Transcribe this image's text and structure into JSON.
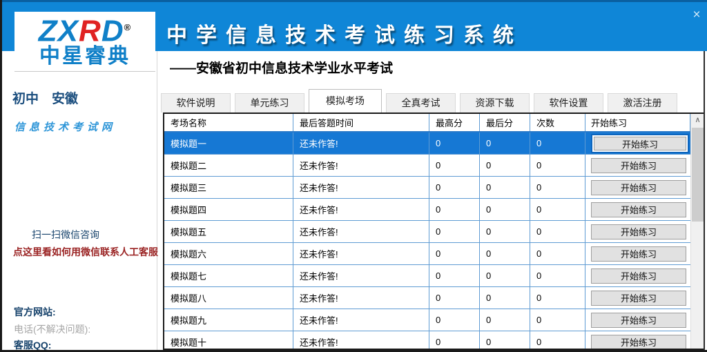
{
  "window": {
    "close_glyph": "×"
  },
  "header": {
    "logo": {
      "zx": "ZX",
      "r": "R",
      "d": "D",
      "reg": "®",
      "cn": "中星睿典"
    },
    "title": "中学信息技术考试练习系统",
    "subtitle": "——安徽省初中信息技术学业水平考试"
  },
  "sidebar": {
    "region": "初中　安徽",
    "site_name": "信息技术考试网",
    "wechat_scan": "扫一扫微信咨询",
    "wechat_help_link": "点这里看如何用微信联系人工客服",
    "official_site_label": "官方网站:",
    "phone_label": "电话(不解决问题):",
    "qq_label": "客服QQ:"
  },
  "tabs": [
    {
      "label": "软件说明",
      "active": false
    },
    {
      "label": "单元练习",
      "active": false
    },
    {
      "label": "模拟考场",
      "active": true
    },
    {
      "label": "全真考试",
      "active": false
    },
    {
      "label": "资源下载",
      "active": false
    },
    {
      "label": "软件设置",
      "active": false
    },
    {
      "label": "激活注册",
      "active": false
    }
  ],
  "table": {
    "headers": [
      "考场名称",
      "最后答题时间",
      "最高分",
      "最后分",
      "次数",
      "开始练习"
    ],
    "button_label": "开始练习",
    "rows": [
      {
        "name": "模拟题一",
        "last_time": "还未作答!",
        "best_score": "0",
        "last_score": "0",
        "count": "0",
        "selected": true
      },
      {
        "name": "模拟题二",
        "last_time": "还未作答!",
        "best_score": "0",
        "last_score": "0",
        "count": "0",
        "selected": false
      },
      {
        "name": "模拟题三",
        "last_time": "还未作答!",
        "best_score": "0",
        "last_score": "0",
        "count": "0",
        "selected": false
      },
      {
        "name": "模拟题四",
        "last_time": "还未作答!",
        "best_score": "0",
        "last_score": "0",
        "count": "0",
        "selected": false
      },
      {
        "name": "模拟题五",
        "last_time": "还未作答!",
        "best_score": "0",
        "last_score": "0",
        "count": "0",
        "selected": false
      },
      {
        "name": "模拟题六",
        "last_time": "还未作答!",
        "best_score": "0",
        "last_score": "0",
        "count": "0",
        "selected": false
      },
      {
        "name": "模拟题七",
        "last_time": "还未作答!",
        "best_score": "0",
        "last_score": "0",
        "count": "0",
        "selected": false
      },
      {
        "name": "模拟题八",
        "last_time": "还未作答!",
        "best_score": "0",
        "last_score": "0",
        "count": "0",
        "selected": false
      },
      {
        "name": "模拟题九",
        "last_time": "还未作答!",
        "best_score": "0",
        "last_score": "0",
        "count": "0",
        "selected": false
      },
      {
        "name": "模拟题十",
        "last_time": "还未作答!",
        "best_score": "0",
        "last_score": "0",
        "count": "0",
        "selected": false
      }
    ]
  },
  "scrollbar": {
    "up_glyph": "▲"
  },
  "colors": {
    "header_blue": "#0f86d7",
    "header_top_line": "#0a5fa0",
    "selected_row_blue": "#1678d4",
    "grid_line_blue": "#5e9bd3",
    "table_border": "#1a1a1a",
    "logo_blue": "#1080c8",
    "logo_red": "#e02222",
    "navy_text": "#16426b",
    "red_link": "#9a2323",
    "button_bg": "#e1e1e1",
    "focus_ring_blue": "#0d65bd"
  }
}
